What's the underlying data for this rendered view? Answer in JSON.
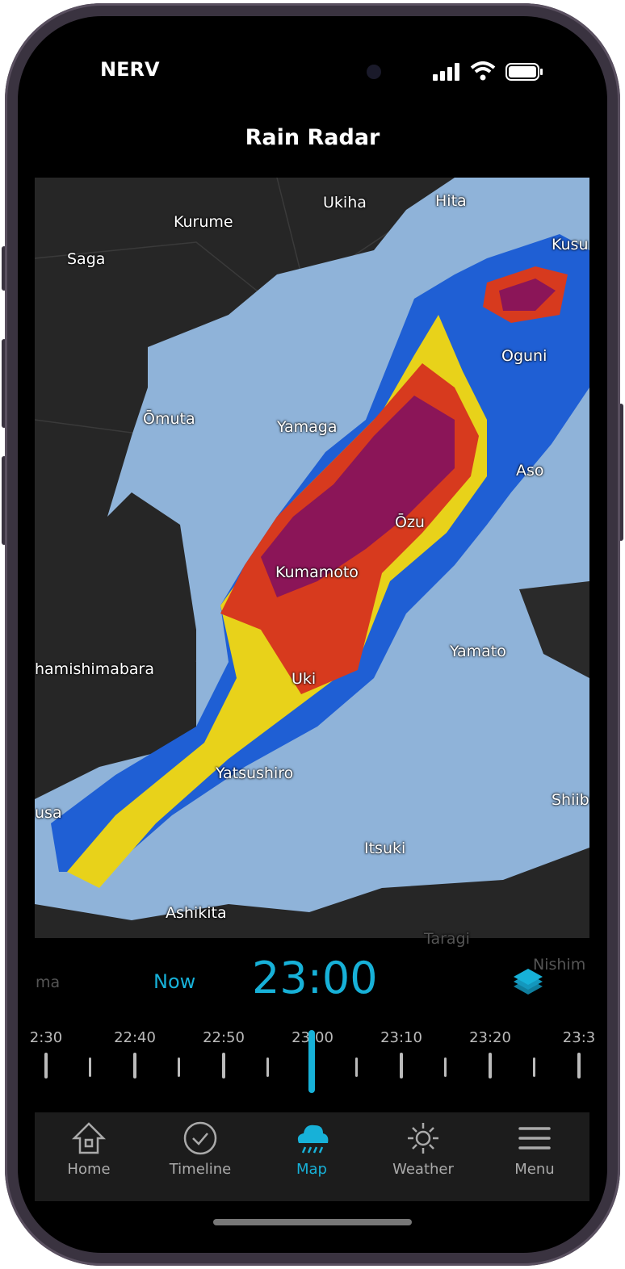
{
  "status_bar": {
    "carrier": "NERV"
  },
  "header": {
    "title": "Rain Radar"
  },
  "map": {
    "labels": [
      "Ukiha",
      "Kurume",
      "Hita",
      "Saga",
      "Kusu",
      "Oguni",
      "Ōmuta",
      "Yamaga",
      "Aso",
      "Ōzu",
      "Kumamoto",
      "Yamato",
      "hamishimabara",
      "Uki",
      "Yatsushiro",
      "Shiib",
      "usa",
      "Itsuki",
      "Ashikita",
      "Taragi",
      "Nishim",
      "ma"
    ],
    "radar_colors": {
      "light": "#8fb3d9",
      "blue": "#1f5fd4",
      "yellow": "#e8d21a",
      "red": "#d73a1e",
      "purple": "#8b1558"
    }
  },
  "controls": {
    "now_label": "Now",
    "current_time": "23:00",
    "layers_icon": "layers-icon",
    "accent": "#17b1d8"
  },
  "timeline": {
    "ticks": [
      "2:30",
      "22:40",
      "22:50",
      "23:00",
      "23:10",
      "23:20",
      "23:3"
    ]
  },
  "tabbar": {
    "items": [
      {
        "label": "Home",
        "icon": "home-icon"
      },
      {
        "label": "Timeline",
        "icon": "check-circle-icon"
      },
      {
        "label": "Map",
        "icon": "rain-cloud-icon",
        "active": true
      },
      {
        "label": "Weather",
        "icon": "sun-icon"
      },
      {
        "label": "Menu",
        "icon": "menu-icon"
      }
    ]
  }
}
